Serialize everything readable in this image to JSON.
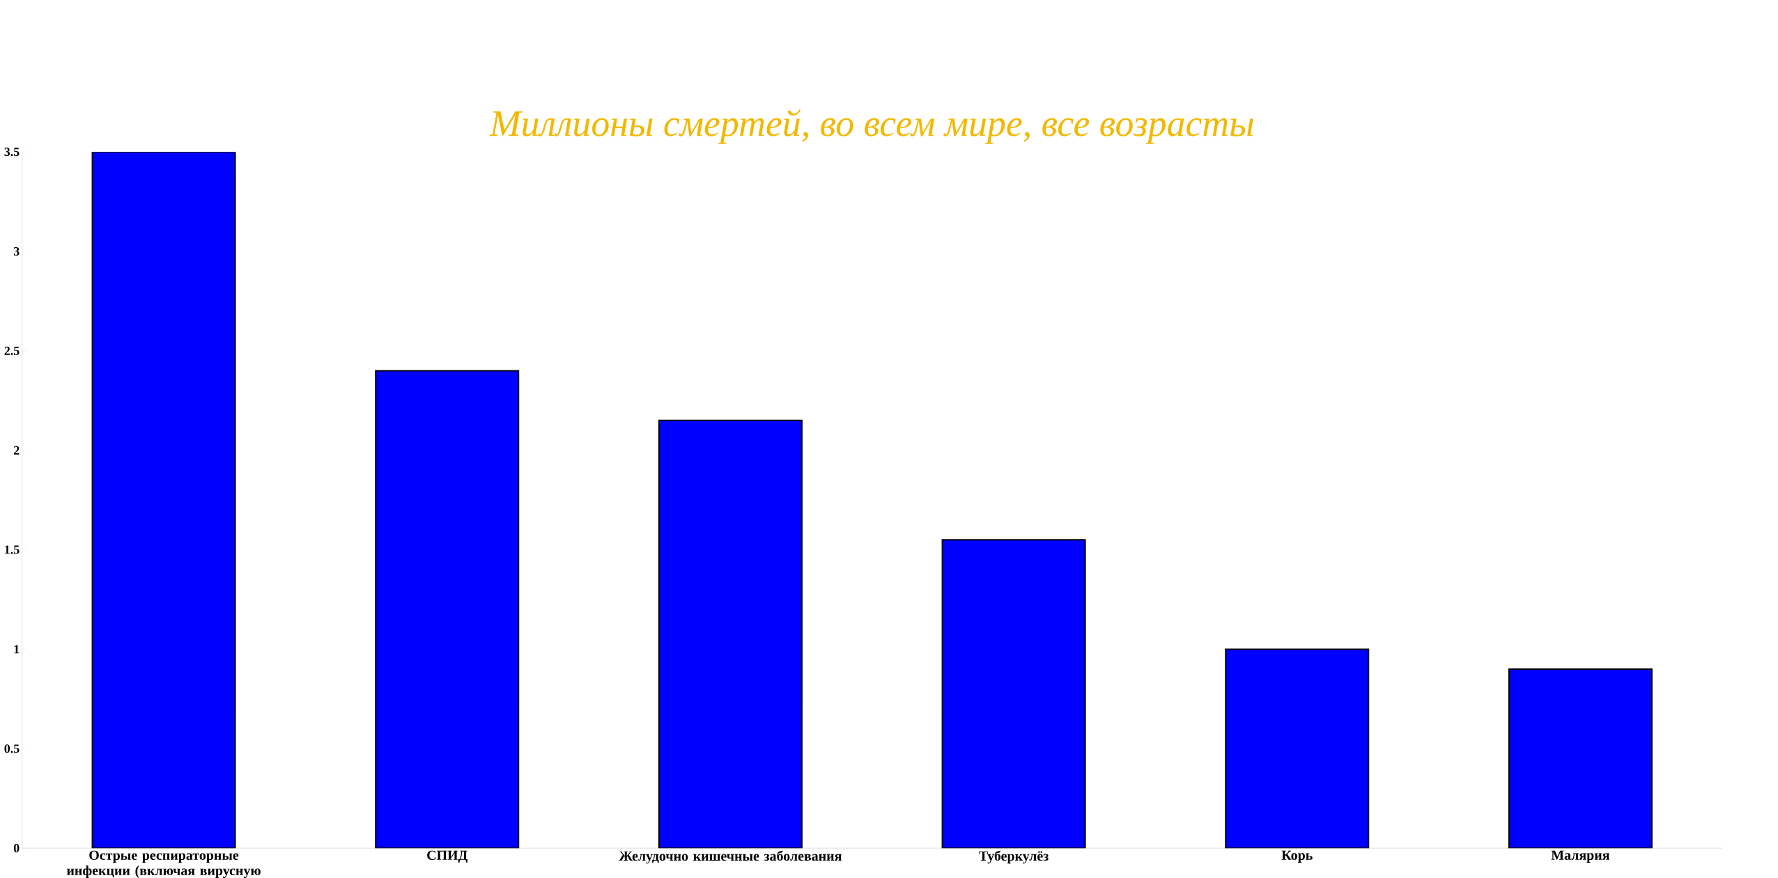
{
  "chart_data": {
    "type": "bar",
    "title": "Миллионы смертей, во всем мире, все возрасты",
    "categories": [
      "Острые респираторные инфекции (включая вирусную",
      "СПИД",
      "Желудочно кишечные заболевания",
      "Туберкулёз",
      "Корь",
      "Малярия"
    ],
    "values": [
      3.5,
      2.4,
      2.15,
      1.55,
      1.0,
      0.9
    ],
    "color": "#0000ff",
    "ylim": [
      0,
      3.5
    ],
    "yticks": [
      0,
      0.5,
      1,
      1.5,
      2,
      2.5,
      3,
      3.5
    ],
    "grid": false
  }
}
